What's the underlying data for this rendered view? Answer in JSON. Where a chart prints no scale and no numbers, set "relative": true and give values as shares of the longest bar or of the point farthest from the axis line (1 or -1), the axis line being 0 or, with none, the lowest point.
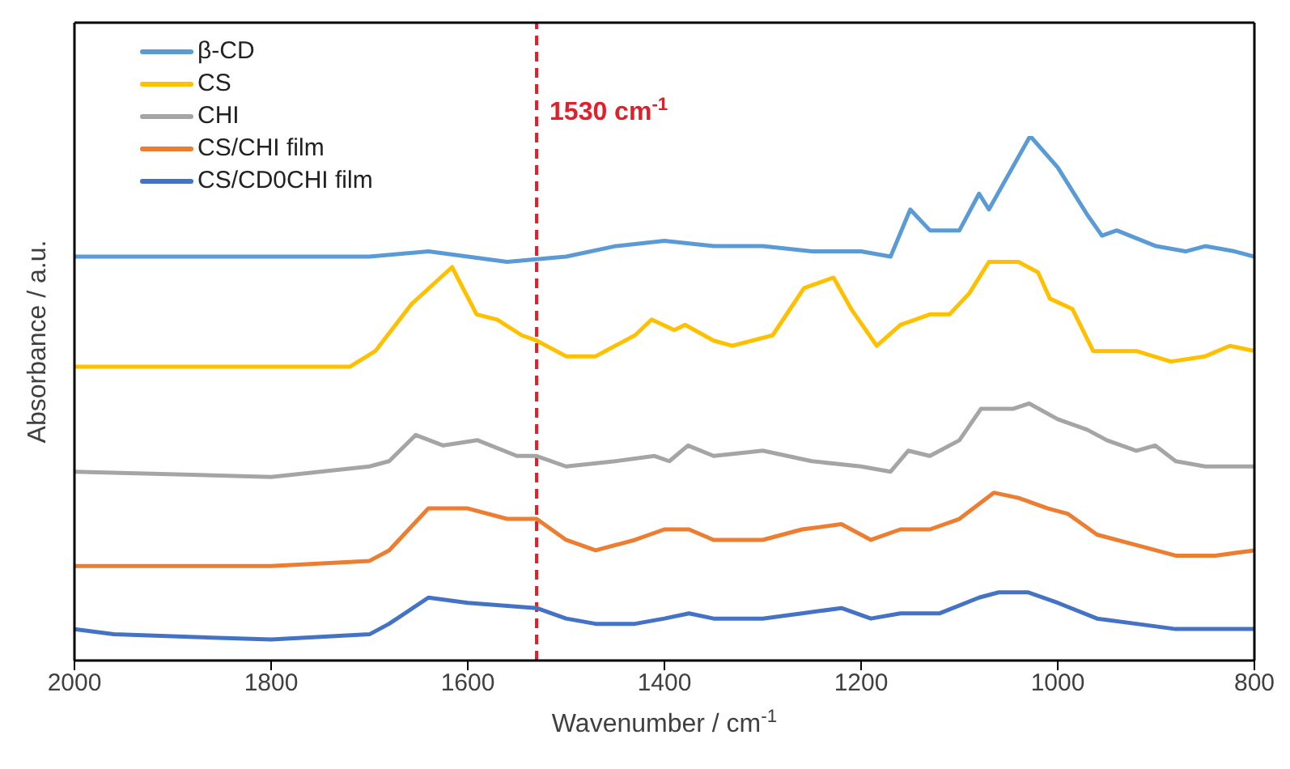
{
  "chart_data": {
    "type": "line",
    "relative": true,
    "xlabel": "Wavenumber / cm$^{-1}$",
    "ylabel": "Absorbance / a.u.",
    "xlim": [
      2000,
      800
    ],
    "xticks": [
      2000,
      1800,
      1600,
      1400,
      1200,
      1000,
      800
    ],
    "tick_labels": "x",
    "grid": false,
    "legend": "top left",
    "marker": "none",
    "line_style": "solid",
    "ref_lines": [
      {
        "axis": "x",
        "value": 1530,
        "label": "1530 cm$^{-1}$",
        "color": "#e0202a",
        "line_style": "dashed"
      }
    ],
    "series": [
      {
        "name": "β-CD",
        "color": "#5b9bd5",
        "x": [
          2000,
          1900,
          1800,
          1700,
          1640,
          1560,
          1500,
          1450,
          1400,
          1350,
          1300,
          1250,
          1200,
          1170,
          1150,
          1130,
          1100,
          1080,
          1070,
          1028,
          1000,
          970,
          955,
          940,
          900,
          870,
          850,
          820,
          800
        ],
        "values": [
          0.77,
          0.77,
          0.77,
          0.77,
          0.78,
          0.76,
          0.77,
          0.79,
          0.8,
          0.79,
          0.79,
          0.78,
          0.78,
          0.77,
          0.86,
          0.82,
          0.82,
          0.89,
          0.86,
          1.0,
          0.94,
          0.85,
          0.81,
          0.82,
          0.79,
          0.78,
          0.79,
          0.78,
          0.77
        ]
      },
      {
        "name": "CS",
        "color": "#ffc000",
        "x": [
          2000,
          1800,
          1720,
          1694,
          1657,
          1616,
          1591,
          1570,
          1545,
          1530,
          1500,
          1470,
          1430,
          1413,
          1390,
          1379,
          1350,
          1331,
          1290,
          1258,
          1228,
          1210,
          1184,
          1160,
          1130,
          1110,
          1090,
          1070,
          1040,
          1020,
          1008,
          985,
          964,
          920,
          885,
          850,
          825,
          800
        ],
        "values": [
          0.56,
          0.56,
          0.56,
          0.59,
          0.68,
          0.75,
          0.66,
          0.65,
          0.62,
          0.61,
          0.58,
          0.58,
          0.62,
          0.65,
          0.63,
          0.64,
          0.61,
          0.6,
          0.62,
          0.71,
          0.73,
          0.67,
          0.6,
          0.64,
          0.66,
          0.66,
          0.7,
          0.76,
          0.76,
          0.74,
          0.69,
          0.67,
          0.59,
          0.59,
          0.57,
          0.58,
          0.6,
          0.59
        ]
      },
      {
        "name": "CHI",
        "color": "#a5a5a5",
        "x": [
          2000,
          1800,
          1700,
          1680,
          1653,
          1625,
          1590,
          1550,
          1530,
          1500,
          1450,
          1410,
          1395,
          1376,
          1350,
          1300,
          1250,
          1200,
          1170,
          1152,
          1130,
          1100,
          1078,
          1045,
          1029,
          1000,
          970,
          950,
          920,
          901,
          880,
          850,
          800
        ],
        "values": [
          0.36,
          0.35,
          0.37,
          0.38,
          0.43,
          0.41,
          0.42,
          0.39,
          0.39,
          0.37,
          0.38,
          0.39,
          0.38,
          0.41,
          0.39,
          0.4,
          0.38,
          0.37,
          0.36,
          0.4,
          0.39,
          0.42,
          0.48,
          0.48,
          0.49,
          0.46,
          0.44,
          0.42,
          0.4,
          0.41,
          0.38,
          0.37,
          0.37
        ]
      },
      {
        "name": "CS/CHI film",
        "color": "#ed7d31",
        "x": [
          2000,
          1960,
          1800,
          1700,
          1680,
          1640,
          1600,
          1560,
          1530,
          1500,
          1470,
          1430,
          1400,
          1375,
          1350,
          1300,
          1260,
          1220,
          1190,
          1160,
          1130,
          1100,
          1065,
          1040,
          1010,
          990,
          960,
          920,
          880,
          840,
          800
        ],
        "values": [
          0.18,
          0.18,
          0.18,
          0.19,
          0.21,
          0.29,
          0.29,
          0.27,
          0.27,
          0.23,
          0.21,
          0.23,
          0.25,
          0.25,
          0.23,
          0.23,
          0.25,
          0.26,
          0.23,
          0.25,
          0.25,
          0.27,
          0.32,
          0.31,
          0.29,
          0.28,
          0.24,
          0.22,
          0.2,
          0.2,
          0.21
        ]
      },
      {
        "name": "CS/CD0CHI film",
        "color": "#4472c4",
        "x": [
          2000,
          1960,
          1800,
          1700,
          1680,
          1640,
          1600,
          1530,
          1500,
          1470,
          1430,
          1400,
          1375,
          1350,
          1300,
          1260,
          1220,
          1190,
          1160,
          1120,
          1080,
          1060,
          1030,
          1000,
          960,
          920,
          880,
          840,
          800
        ],
        "values": [
          0.06,
          0.05,
          0.04,
          0.05,
          0.07,
          0.12,
          0.11,
          0.1,
          0.08,
          0.07,
          0.07,
          0.08,
          0.09,
          0.08,
          0.08,
          0.09,
          0.1,
          0.08,
          0.09,
          0.09,
          0.12,
          0.13,
          0.13,
          0.11,
          0.08,
          0.07,
          0.06,
          0.06,
          0.06
        ]
      }
    ]
  }
}
